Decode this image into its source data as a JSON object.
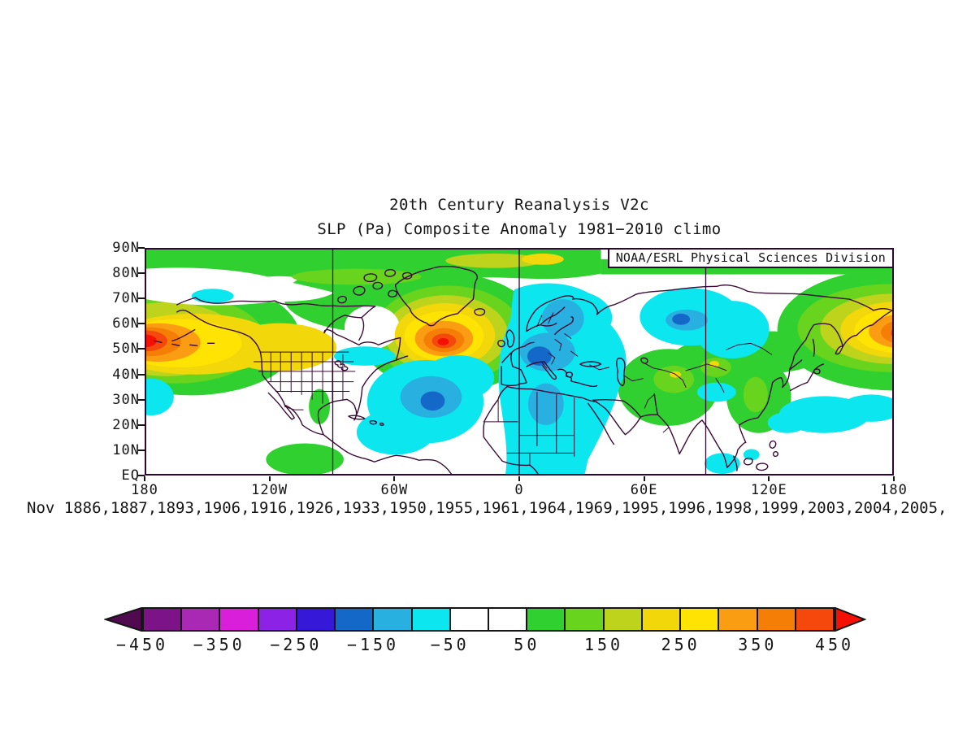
{
  "title": {
    "line1": "20th Century Reanalysis V2c",
    "line2": "SLP (Pa) Composite Anomaly 1981−2010 climo"
  },
  "map": {
    "watermark": "NOAA/ESRL Physical Sciences Division"
  },
  "axes": {
    "lat_labels": [
      "90N",
      "80N",
      "70N",
      "60N",
      "50N",
      "40N",
      "30N",
      "20N",
      "10N",
      "EQ"
    ],
    "lon_labels": [
      "180",
      "120W",
      "60W",
      "0",
      "60E",
      "120E",
      "180"
    ]
  },
  "caption": "Nov 1886,1887,1893,1906,1916,1926,1933,1950,1955,1961,1964,1969,1995,1996,1998,1999,2003,2004,2005,",
  "colorbar": {
    "tick_labels": [
      "−450",
      "−350",
      "−250",
      "−150",
      "−50",
      "50",
      "150",
      "250",
      "350",
      "450"
    ],
    "segment_colors": [
      "#7c1386",
      "#a928b4",
      "#da1fda",
      "#8c22e6",
      "#3618d8",
      "#1468c8",
      "#28b0e0",
      "#0ce6ee",
      "#ffffff",
      "#ffffff",
      "#30d030",
      "#68d41e",
      "#bed41c",
      "#f2d70a",
      "#ffe303",
      "#fb9d12",
      "#f57f06",
      "#f5480c"
    ],
    "left_arrow_color": "#4f0a50",
    "right_arrow_color": "#f51005"
  },
  "chart_data": {
    "type": "heatmap",
    "title": "20th Century Reanalysis V2c",
    "subtitle": "SLP (Pa) Composite Anomaly 1981−2010 climo",
    "variable": "Sea Level Pressure composite anomaly",
    "units": "Pa",
    "climatology_period": "1981−2010",
    "composite_month": "Nov",
    "composite_years": [
      1886,
      1887,
      1893,
      1906,
      1916,
      1926,
      1933,
      1950,
      1955,
      1961,
      1964,
      1969,
      1995,
      1996,
      1998,
      1999,
      2003,
      2004,
      2005
    ],
    "lat_axis": {
      "labels": [
        "90N",
        "80N",
        "70N",
        "60N",
        "50N",
        "40N",
        "30N",
        "20N",
        "10N",
        "EQ"
      ],
      "range_deg": [
        0,
        90
      ]
    },
    "lon_axis": {
      "labels": [
        "180",
        "120W",
        "60W",
        "0",
        "60E",
        "120E",
        "180"
      ],
      "range_deg": [
        -180,
        180
      ]
    },
    "grid_meridians_deg": [
      -90,
      0,
      90
    ],
    "contour_interval_pa": 50,
    "color_levels_pa": [
      -450,
      -400,
      -350,
      -300,
      -250,
      -200,
      -150,
      -100,
      -50,
      0,
      50,
      100,
      150,
      200,
      250,
      300,
      350,
      400,
      450
    ],
    "palette": [
      "#7c1386",
      "#a928b4",
      "#da1fda",
      "#8c22e6",
      "#3618d8",
      "#1468c8",
      "#28b0e0",
      "#0ce6ee",
      "#ffffff",
      "#ffffff",
      "#30d030",
      "#68d41e",
      "#bed41c",
      "#f2d70a",
      "#ffe303",
      "#fb9d12",
      "#f57f06",
      "#f5480c"
    ],
    "legend_position": "bottom",
    "anomaly_centers": [
      {
        "location": "Gulf of Alaska / Bering Sea (~180, 55N)",
        "sign": "positive",
        "peak_pa": 450
      },
      {
        "location": "South of Greenland / Iceland (~40W, 55N)",
        "sign": "positive",
        "peak_pa": 430
      },
      {
        "location": "NW Pacific near Kamchatka (~175E, 57N)",
        "sign": "positive",
        "peak_pa": 450
      },
      {
        "location": "Central North Atlantic (~35W, 30N)",
        "sign": "negative",
        "peak_pa": -200
      },
      {
        "location": "Western Europe (~5E, 48N)",
        "sign": "negative",
        "peak_pa": -230
      },
      {
        "location": "Western Siberia (~70E, 62N)",
        "sign": "negative",
        "peak_pa": -180
      }
    ],
    "credit": "NOAA/ESRL Physical Sciences Division"
  }
}
